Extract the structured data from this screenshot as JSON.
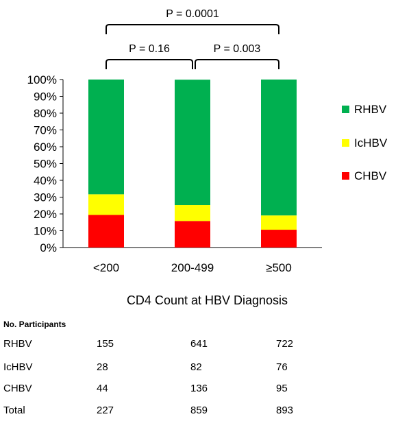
{
  "chart_data": {
    "type": "bar",
    "stacked": true,
    "percent": true,
    "categories": [
      "<200",
      "200-499",
      "≥500"
    ],
    "series": [
      {
        "name": "CHBV",
        "color": "#ff0000",
        "values": [
          19.4,
          15.8,
          10.6
        ]
      },
      {
        "name": "IcHBV",
        "color": "#ffff00",
        "values": [
          12.3,
          9.5,
          8.5
        ]
      },
      {
        "name": "RHBV",
        "color": "#00b050",
        "values": [
          68.3,
          74.6,
          80.9
        ]
      }
    ],
    "ylim": [
      0,
      100
    ],
    "yticks": [
      "0%",
      "10%",
      "20%",
      "30%",
      "40%",
      "50%",
      "60%",
      "70%",
      "80%",
      "90%",
      "100%"
    ],
    "xlabel": "CD4 Count at HBV Diagnosis",
    "legend_order": [
      "RHBV",
      "IcHBV",
      "CHBV"
    ],
    "legend_position": "right",
    "grid": false,
    "annotations": [
      {
        "text": "P = 0.0001",
        "from": "<200",
        "to": "≥500",
        "level": "top"
      },
      {
        "text": "P = 0.16",
        "from": "<200",
        "to": "200-499",
        "level": "lower"
      },
      {
        "text": "P = 0.003",
        "from": "200-499",
        "to": "≥500",
        "level": "lower"
      }
    ]
  },
  "table": {
    "header": "No. Participants",
    "rows": [
      {
        "label": "RHBV",
        "values": [
          "155",
          "641",
          "722"
        ]
      },
      {
        "label": "IcHBV",
        "values": [
          "28",
          "82",
          "76"
        ]
      },
      {
        "label": "CHBV",
        "values": [
          "44",
          "136",
          "95"
        ]
      },
      {
        "label": "Total",
        "values": [
          "227",
          "859",
          "893"
        ]
      }
    ]
  }
}
